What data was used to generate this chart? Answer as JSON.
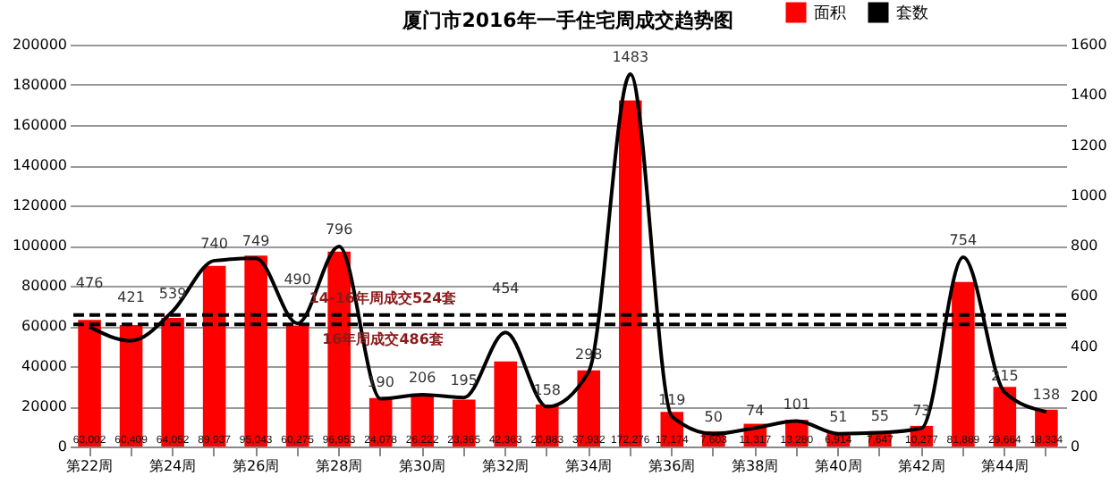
{
  "chart_data": {
    "type": "bar",
    "title": "厦门市2016年一手住宅周成交趋势图",
    "categories": [
      "第22周",
      null,
      "第24周",
      null,
      "第26周",
      null,
      "第28周",
      null,
      "第30周",
      null,
      "第32周",
      null,
      "第34周",
      null,
      "第36周",
      null,
      "第38周",
      null,
      "第40周",
      null,
      "第42周",
      null,
      "第44周",
      null
    ],
    "series": [
      {
        "name": "面积",
        "color": "#ff0000",
        "values": [
          63002,
          60409,
          64052,
          89937,
          95043,
          60275,
          96953,
          24078,
          26222,
          23365,
          42363,
          20883,
          37932,
          172276,
          17174,
          7603,
          11317,
          13280,
          6914,
          7647,
          10277,
          81889,
          29664,
          18334
        ],
        "value_labels": [
          "63,002",
          "60,409",
          "64,052",
          "89,937",
          "95,043",
          "60,275",
          "96,953",
          "24,078",
          "26,222",
          "23,365",
          "42,363",
          "20,883",
          "37,932",
          "172,276",
          "17,174",
          "7,603",
          "11,317",
          "13,280",
          "6,914",
          "7,647",
          "10,277",
          "81,889",
          "29,664",
          "18,334"
        ]
      },
      {
        "name": "套数",
        "type": "line",
        "color": "#000000",
        "axis": "y2",
        "values": [
          476,
          421,
          539,
          740,
          749,
          490,
          796,
          190,
          206,
          195,
          454,
          158,
          298,
          1483,
          119,
          50,
          74,
          101,
          51,
          55,
          73,
          754,
          215,
          138
        ],
        "value_labels": [
          "476",
          "421",
          "539",
          "740",
          "749",
          "490",
          "796",
          "190",
          "206",
          "195",
          "454",
          "158",
          "298",
          "1483",
          "119",
          "50",
          "74",
          "101",
          "51",
          "55",
          "73",
          "754",
          "215",
          "138"
        ]
      }
    ],
    "ylim": [
      0,
      200000
    ],
    "yticks": [
      0,
      20000,
      40000,
      60000,
      80000,
      100000,
      120000,
      140000,
      160000,
      180000,
      200000
    ],
    "y2lim": [
      0,
      1600
    ],
    "y2ticks": [
      0,
      200,
      400,
      600,
      800,
      1000,
      1200,
      1400,
      1600
    ],
    "ref_lines": [
      {
        "axis": "y2",
        "value": 524,
        "label": "14-16年周成交524套",
        "color": "#000000",
        "line_style": "dashed"
      },
      {
        "axis": "y2",
        "value": 486,
        "label": "16年周成交486套",
        "color": "#000000",
        "line_style": "dashed"
      }
    ],
    "grid": "y",
    "legend": "top right",
    "marker": "none",
    "line_style": "solid"
  }
}
